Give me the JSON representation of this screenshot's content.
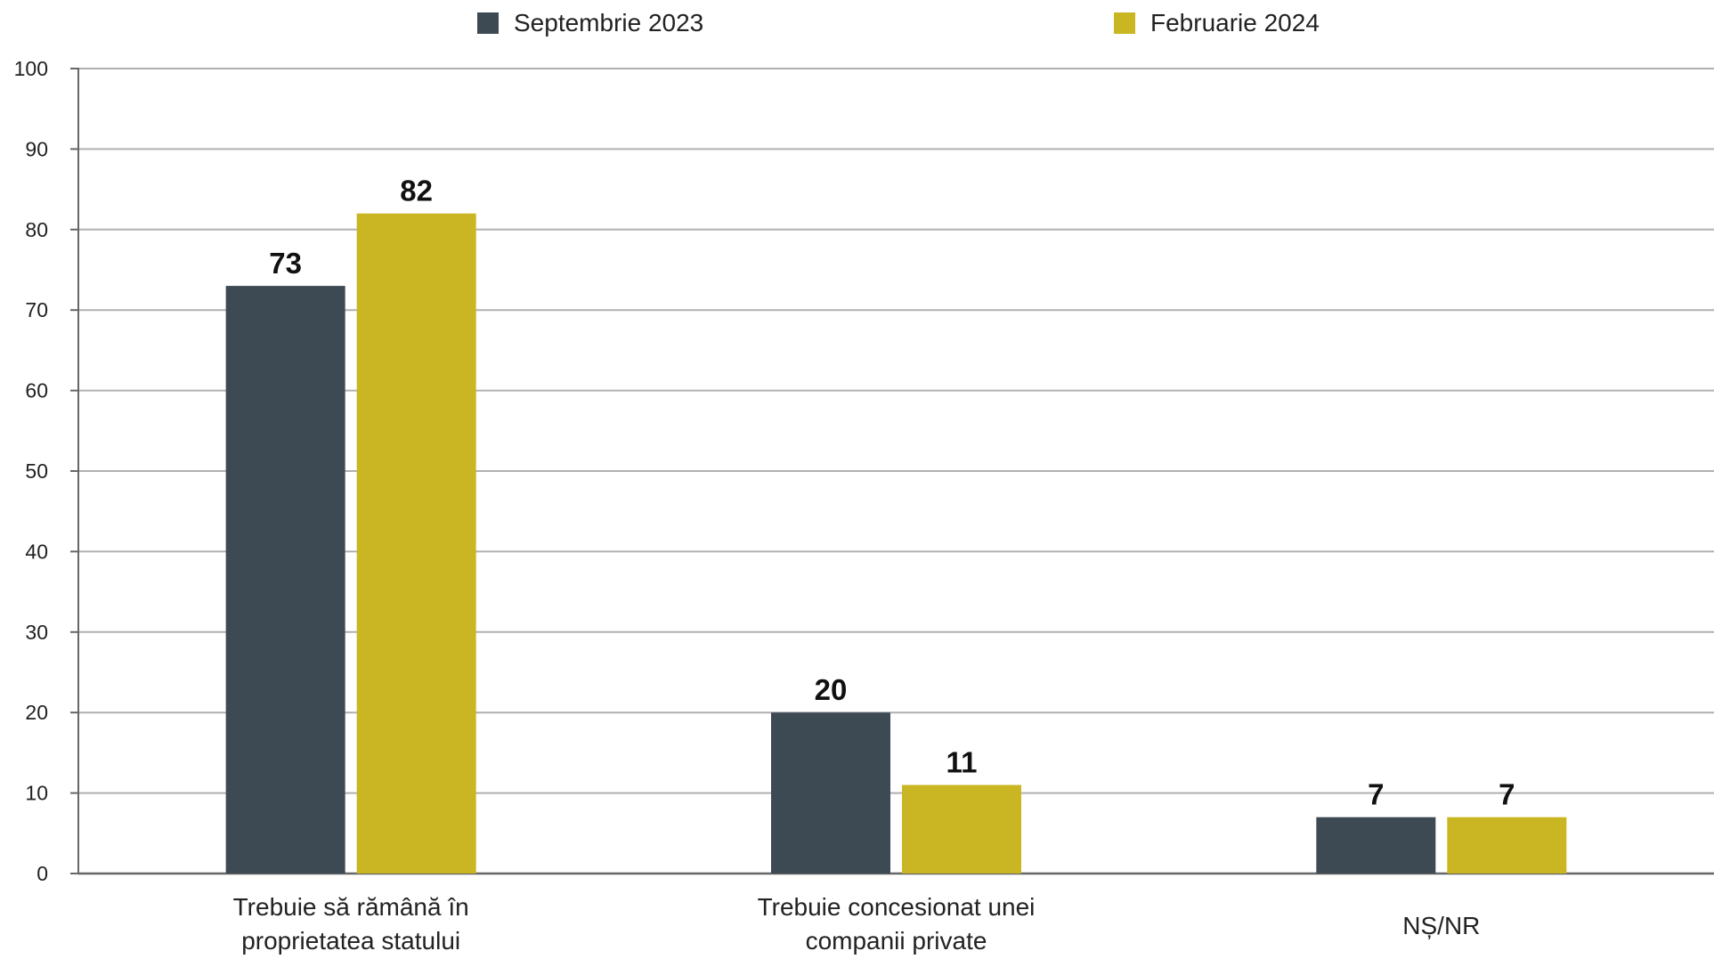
{
  "chart_data": {
    "type": "bar",
    "title": "",
    "xlabel": "",
    "ylabel": "",
    "categories": [
      [
        "Trebuie să rămână în",
        "proprietatea statului"
      ],
      [
        "Trebuie concesionat unei",
        "companii private"
      ],
      [
        "NȘ/NR"
      ]
    ],
    "series": [
      {
        "name": "Septembrie 2023",
        "color": "#3d4a54",
        "values": [
          73,
          20,
          7
        ]
      },
      {
        "name": "Februarie 2024",
        "color": "#c9b622",
        "values": [
          82,
          11,
          7
        ]
      }
    ],
    "ylim": [
      0,
      100
    ],
    "yticks": [
      0,
      10,
      20,
      30,
      40,
      50,
      60,
      70,
      80,
      90,
      100
    ],
    "grid": true,
    "legend_position": "top-center",
    "colors": {
      "grid": "#b0b0b0",
      "axis": "#666666"
    }
  }
}
